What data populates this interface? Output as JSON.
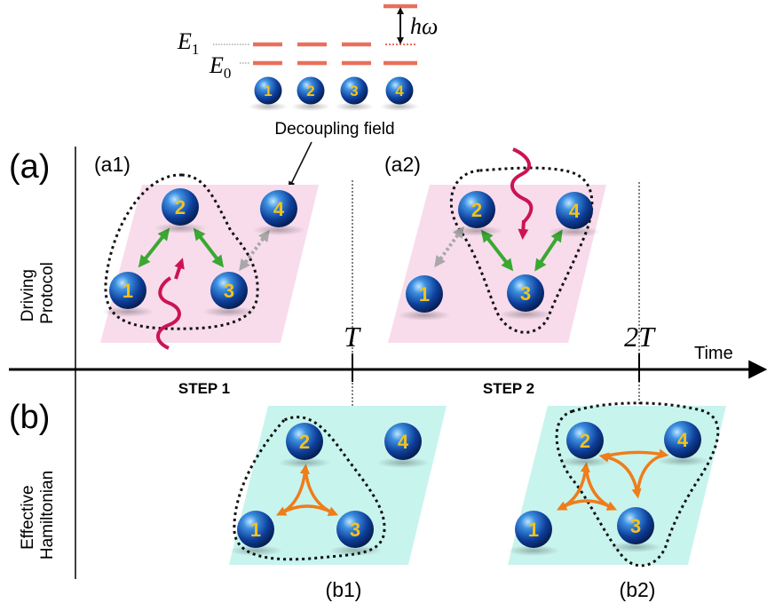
{
  "energy_levels": {
    "e1_label": "E",
    "e1_sub": "1",
    "e0_label": "E",
    "e0_sub": "0",
    "quantum_label": "hω"
  },
  "top_qubits": [
    "1",
    "2",
    "3",
    "4"
  ],
  "decoupling_label": "Decoupling field",
  "panel_a": {
    "label": "(a)",
    "row_label_line1": "Driving",
    "row_label_line2": "Protocol",
    "a1_label": "(a1)",
    "a2_label": "(a2)",
    "a1_qubits": [
      "1",
      "2",
      "3",
      "4"
    ],
    "a2_qubits": [
      "1",
      "2",
      "3",
      "4"
    ]
  },
  "panel_b": {
    "label": "(b)",
    "row_label_line1": "Effective",
    "row_label_line2": "Hamiltonian",
    "b1_label": "(b1)",
    "b2_label": "(b2)",
    "b1_qubits": [
      "1",
      "2",
      "3",
      "4"
    ],
    "b2_qubits": [
      "1",
      "2",
      "3",
      "4"
    ]
  },
  "timeline": {
    "axis_label": "Time",
    "t1_label": "T",
    "t2_label": "2T",
    "step1_label": "STEP 1",
    "step2_label": "STEP 2"
  },
  "colors": {
    "level_line": "#e8705a",
    "pink_plane": "#f8dcec",
    "cyan_plane": "#c8f4ee",
    "green_arrow": "#3aa832",
    "orange_arrow": "#ee7d1a",
    "gray_arrow": "#a0a0a0",
    "wavy_drive": "#cc1452",
    "qubit_number": "#f2c21e"
  }
}
